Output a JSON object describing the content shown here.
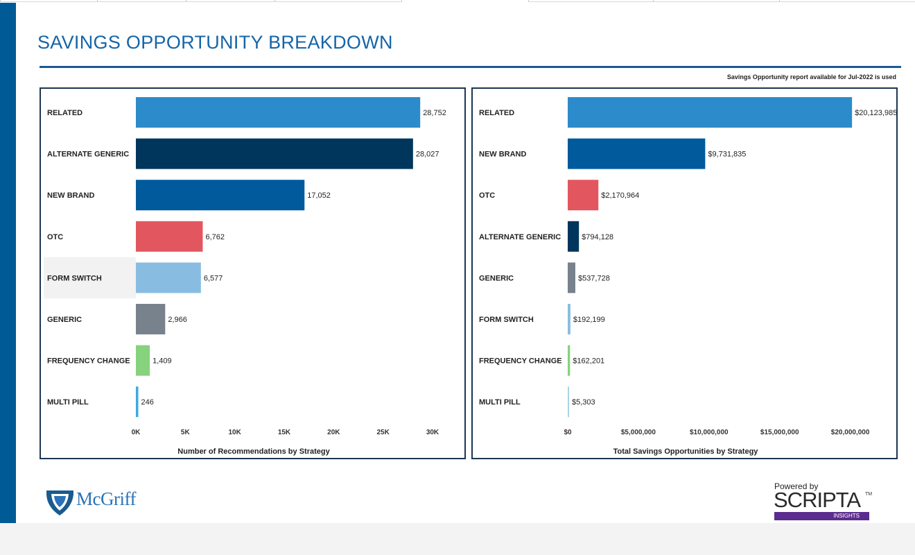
{
  "header": {
    "title": "SAVINGS OPPORTUNITY BREAKDOWN",
    "note": "Savings Opportunity report available for Jul-2022 is used"
  },
  "colors": {
    "brand_blue": "#005a96",
    "title_blue": "#1565a8",
    "panel_border": "#1d3550"
  },
  "chart_data": [
    {
      "type": "bar",
      "orientation": "horizontal",
      "title": "Number of Recommendations by Strategy",
      "categories": [
        "RELATED",
        "ALTERNATE GENERIC",
        "NEW BRAND",
        "OTC",
        "FORM SWITCH",
        "GENERIC",
        "FREQUENCY CHANGE",
        "MULTI PILL"
      ],
      "values": [
        28752,
        28027,
        17052,
        6762,
        6577,
        2966,
        1409,
        246
      ],
      "value_labels": [
        "28,752",
        "28,027",
        "17,052",
        "6,762",
        "6,577",
        "2,966",
        "1,409",
        "246"
      ],
      "colors": [
        "#2b8bcb",
        "#00365b",
        "#005a9b",
        "#e2575f",
        "#88bde1",
        "#78828c",
        "#86d27d",
        "#3fa9e3"
      ],
      "xlim": [
        0,
        30000
      ],
      "ticks": [
        0,
        5000,
        10000,
        15000,
        20000,
        25000,
        30000
      ],
      "tick_labels": [
        "0K",
        "5K",
        "10K",
        "15K",
        "20K",
        "25K",
        "30K"
      ],
      "highlighted_category": "FORM SWITCH",
      "grid": false
    },
    {
      "type": "bar",
      "orientation": "horizontal",
      "title": "Total Savings Opportunities by Strategy",
      "categories": [
        "RELATED",
        "NEW BRAND",
        "OTC",
        "ALTERNATE GENERIC",
        "GENERIC",
        "FORM SWITCH",
        "FREQUENCY CHANGE",
        "MULTI PILL"
      ],
      "values": [
        20123985,
        9731835,
        2170964,
        794128,
        537728,
        192199,
        162201,
        5303
      ],
      "value_labels": [
        "$20,123,985",
        "$9,731,835",
        "$2,170,964",
        "$794,128",
        "$537,728",
        "$192,199",
        "$162,201",
        "$5,303"
      ],
      "colors": [
        "#2b8bcb",
        "#005a9b",
        "#e2575f",
        "#00365b",
        "#78828c",
        "#88bde1",
        "#86d27d",
        "#a7d4e3"
      ],
      "xlim": [
        0,
        21000000
      ],
      "ticks": [
        0,
        5000000,
        10000000,
        15000000,
        20000000
      ],
      "tick_labels": [
        "$0",
        "$5,000,000",
        "$10,000,000",
        "$15,000,000",
        "$20,000,000"
      ],
      "grid": false
    }
  ],
  "logos": {
    "left": "McGriff",
    "right_caption": "Powered by",
    "right_word": "SCRIPTA",
    "right_tm": "TM",
    "right_band": "INSIGHTS"
  }
}
